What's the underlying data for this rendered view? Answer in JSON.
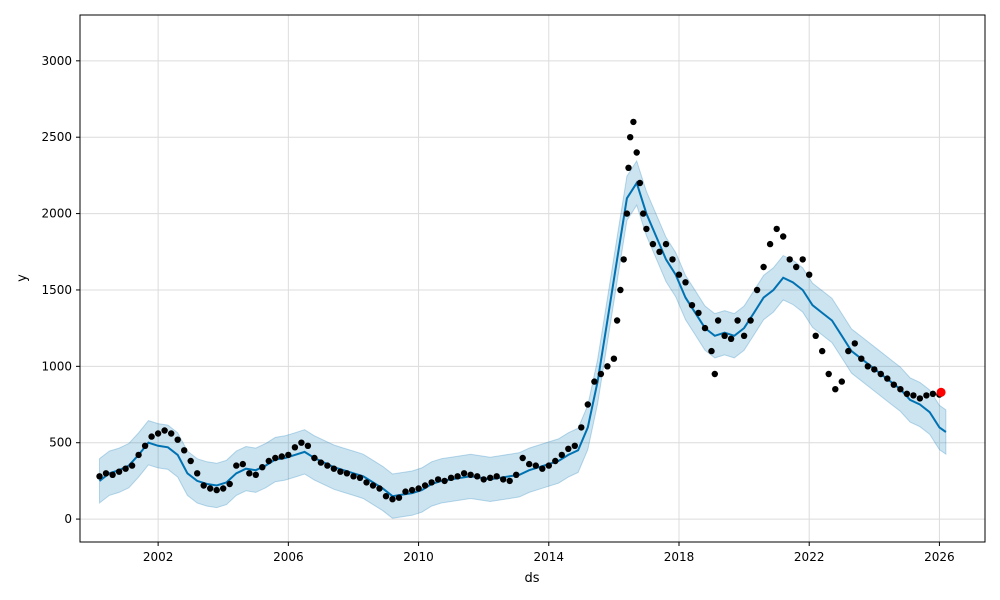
{
  "chart_data": {
    "type": "scatter",
    "title": "",
    "xlabel": "ds",
    "ylabel": "y",
    "xlim": [
      1999.6,
      2027.4
    ],
    "ylim": [
      -150,
      3300
    ],
    "grid": true,
    "x_ticks": [
      2002,
      2006,
      2010,
      2014,
      2018,
      2022,
      2026
    ],
    "y_ticks": [
      0,
      500,
      1000,
      1500,
      2000,
      2500,
      3000
    ],
    "colors": {
      "observed": "#000000",
      "forecast": "#0072b2",
      "interval": "#0072b2",
      "last_point": "#ff0000",
      "grid": "#dcdcdc"
    },
    "series": [
      {
        "kind": "observed",
        "x": [
          2000.2,
          2000.4,
          2000.6,
          2000.8,
          2001.0,
          2001.2,
          2001.4,
          2001.6,
          2001.8,
          2002.0,
          2002.2,
          2002.4,
          2002.6,
          2002.8,
          2003.0,
          2003.2,
          2003.4,
          2003.6,
          2003.8,
          2004.0,
          2004.2,
          2004.4,
          2004.6,
          2004.8,
          2005.0,
          2005.2,
          2005.4,
          2005.6,
          2005.8,
          2006.0,
          2006.2,
          2006.4,
          2006.6,
          2006.8,
          2007.0,
          2007.2,
          2007.4,
          2007.6,
          2007.8,
          2008.0,
          2008.2,
          2008.4,
          2008.6,
          2008.8,
          2009.0,
          2009.2,
          2009.4,
          2009.6,
          2009.8,
          2010.0,
          2010.2,
          2010.4,
          2010.6,
          2010.8,
          2011.0,
          2011.2,
          2011.4,
          2011.6,
          2011.8,
          2012.0,
          2012.2,
          2012.4,
          2012.6,
          2012.8,
          2013.0,
          2013.2,
          2013.4,
          2013.6,
          2013.8,
          2014.0,
          2014.2,
          2014.4,
          2014.6,
          2014.8,
          2015.0,
          2015.2,
          2015.4,
          2015.6,
          2015.8,
          2016.0,
          2016.1,
          2016.2,
          2016.3,
          2016.4,
          2016.45,
          2016.5,
          2016.6,
          2016.7,
          2016.8,
          2016.9,
          2017.0,
          2017.2,
          2017.4,
          2017.6,
          2017.8,
          2018.0,
          2018.2,
          2018.4,
          2018.6,
          2018.8,
          2019.0,
          2019.1,
          2019.2,
          2019.4,
          2019.6,
          2019.8,
          2020.0,
          2020.2,
          2020.4,
          2020.6,
          2020.8,
          2021.0,
          2021.2,
          2021.4,
          2021.6,
          2021.8,
          2022.0,
          2022.2,
          2022.4,
          2022.6,
          2022.8,
          2023.0,
          2023.2,
          2023.4,
          2023.6,
          2023.8,
          2024.0,
          2024.2,
          2024.4,
          2024.6,
          2024.8,
          2025.0,
          2025.2,
          2025.4,
          2025.6,
          2025.8,
          2026.0
        ],
        "y": [
          280,
          300,
          290,
          310,
          330,
          350,
          420,
          480,
          540,
          560,
          580,
          560,
          520,
          450,
          380,
          300,
          220,
          200,
          190,
          200,
          230,
          350,
          360,
          300,
          290,
          340,
          380,
          400,
          410,
          420,
          470,
          500,
          480,
          400,
          370,
          350,
          330,
          310,
          300,
          280,
          270,
          240,
          220,
          200,
          150,
          130,
          140,
          180,
          190,
          200,
          220,
          240,
          260,
          250,
          270,
          280,
          300,
          290,
          280,
          260,
          270,
          280,
          260,
          250,
          290,
          400,
          360,
          350,
          330,
          350,
          380,
          420,
          460,
          480,
          600,
          750,
          900,
          950,
          1000,
          1050,
          1300,
          1500,
          1700,
          2000,
          2300,
          2500,
          2600,
          2400,
          2200,
          2000,
          1900,
          1800,
          1750,
          1800,
          1700,
          1600,
          1550,
          1400,
          1350,
          1250,
          1100,
          950,
          1300,
          1200,
          1180,
          1300,
          1200,
          1300,
          1500,
          1650,
          1800,
          1900,
          1850,
          1700,
          1650,
          1700,
          1600,
          1200,
          1100,
          950,
          850,
          900,
          1100,
          1150,
          1050,
          1000,
          980,
          950,
          920,
          880,
          850,
          820,
          810,
          790,
          810,
          820,
          815
        ]
      },
      {
        "kind": "forecast",
        "x": [
          2000.2,
          2000.5,
          2000.8,
          2001.1,
          2001.4,
          2001.7,
          2002.0,
          2002.3,
          2002.6,
          2002.9,
          2003.2,
          2003.5,
          2003.8,
          2004.1,
          2004.4,
          2004.7,
          2005.0,
          2005.3,
          2005.6,
          2005.9,
          2006.2,
          2006.5,
          2006.8,
          2007.1,
          2007.4,
          2007.7,
          2008.0,
          2008.3,
          2008.6,
          2008.9,
          2009.2,
          2009.5,
          2009.8,
          2010.1,
          2010.4,
          2010.7,
          2011.0,
          2011.3,
          2011.6,
          2011.9,
          2012.2,
          2012.5,
          2012.8,
          2013.1,
          2013.4,
          2013.7,
          2014.0,
          2014.3,
          2014.6,
          2014.9,
          2015.2,
          2015.5,
          2015.8,
          2016.1,
          2016.4,
          2016.7,
          2017.0,
          2017.3,
          2017.6,
          2017.9,
          2018.2,
          2018.5,
          2018.8,
          2019.1,
          2019.4,
          2019.7,
          2020.0,
          2020.3,
          2020.6,
          2020.9,
          2021.2,
          2021.5,
          2021.8,
          2022.1,
          2022.4,
          2022.7,
          2023.0,
          2023.3,
          2023.6,
          2023.9,
          2024.2,
          2024.5,
          2024.8,
          2025.1,
          2025.4,
          2025.7,
          2026.0,
          2026.2
        ],
        "y": [
          250,
          300,
          320,
          350,
          420,
          500,
          480,
          470,
          420,
          300,
          250,
          230,
          220,
          240,
          300,
          330,
          320,
          350,
          390,
          400,
          420,
          440,
          400,
          370,
          340,
          320,
          300,
          280,
          240,
          200,
          150,
          160,
          170,
          190,
          230,
          250,
          260,
          270,
          280,
          270,
          260,
          270,
          280,
          290,
          320,
          340,
          360,
          380,
          420,
          450,
          600,
          900,
          1300,
          1700,
          2100,
          2200,
          2000,
          1850,
          1700,
          1600,
          1450,
          1350,
          1250,
          1200,
          1220,
          1200,
          1250,
          1350,
          1450,
          1500,
          1580,
          1550,
          1500,
          1400,
          1350,
          1300,
          1200,
          1100,
          1050,
          1000,
          950,
          900,
          850,
          780,
          750,
          700,
          600,
          570
        ]
      },
      {
        "kind": "last_point",
        "x": [
          2026.05
        ],
        "y": [
          830
        ]
      }
    ],
    "interval_halfwidth": 145
  }
}
